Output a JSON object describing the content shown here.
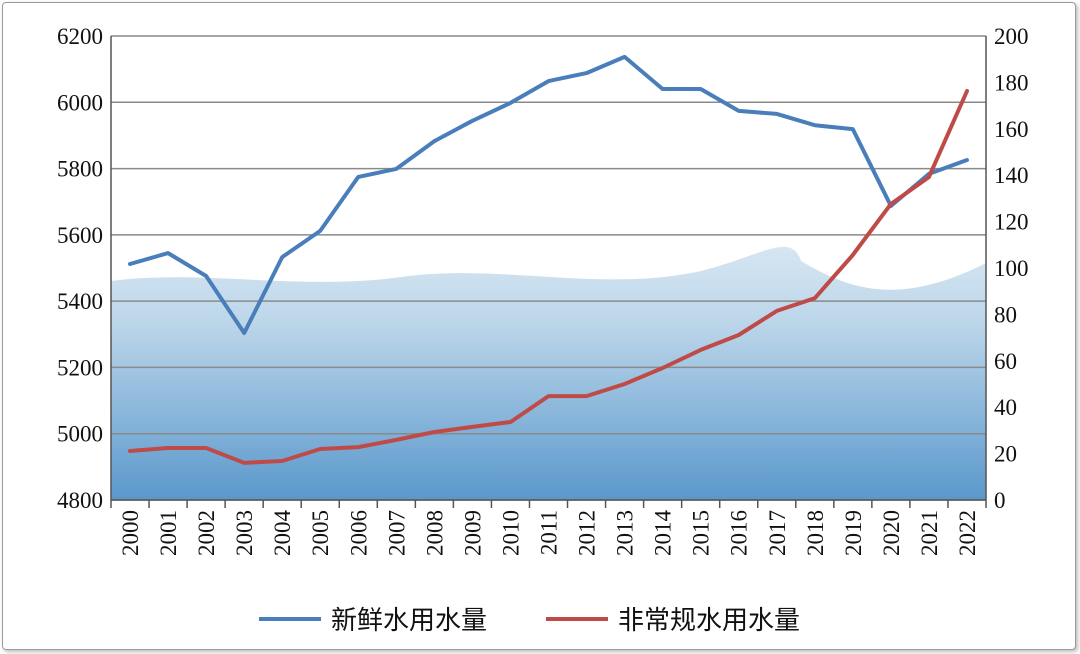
{
  "chart_data": {
    "type": "line",
    "title": "",
    "x": [
      "2000",
      "2001",
      "2002",
      "2003",
      "2004",
      "2005",
      "2006",
      "2007",
      "2008",
      "2009",
      "2010",
      "2011",
      "2012",
      "2013",
      "2014",
      "2015",
      "2016",
      "2017",
      "2018",
      "2019",
      "2020",
      "2021",
      "2022"
    ],
    "y_left": {
      "ylim": [
        4800,
        6200
      ],
      "ticks": [
        "4800",
        "5000",
        "5200",
        "5400",
        "5600",
        "5800",
        "6000",
        "6200"
      ]
    },
    "y_right": {
      "ylim": [
        0,
        200
      ],
      "ticks": [
        "0",
        "20",
        "40",
        "60",
        "80",
        "100",
        "120",
        "140",
        "160",
        "180",
        "200"
      ]
    },
    "grid": true,
    "legend_placement": "bottom",
    "series": [
      {
        "name": "新鲜水用水量",
        "axis": "left",
        "color": "#4a7ebb",
        "values": [
          5512,
          5545,
          5476,
          5304,
          5533,
          5612,
          5775,
          5799,
          5883,
          5944,
          5998,
          6064,
          6088,
          6137,
          6040,
          6040,
          5974,
          5965,
          5931,
          5919,
          5687,
          5784,
          5826
        ]
      },
      {
        "name": "非常规水用水量",
        "axis": "right",
        "color": "#be4b48",
        "values": [
          21.1,
          22.4,
          22.4,
          16,
          16.8,
          22,
          22.8,
          25.9,
          29.3,
          31.5,
          33.6,
          44.8,
          44.8,
          50,
          56.9,
          64.7,
          71.1,
          81.5,
          87,
          105.6,
          127.6,
          139.2,
          176.3
        ]
      }
    ]
  }
}
